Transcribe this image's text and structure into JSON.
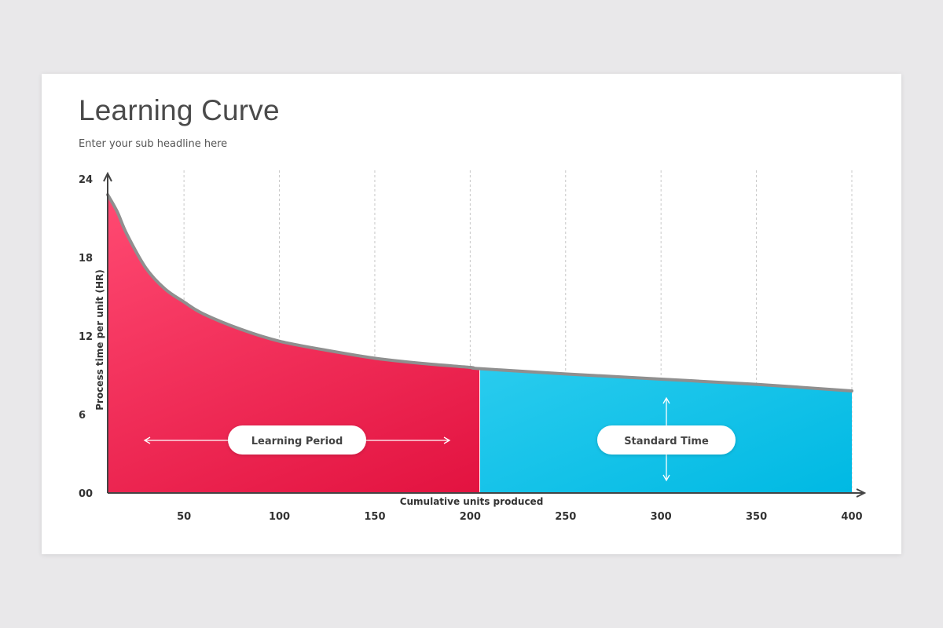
{
  "slide": {
    "title": "Learning Curve",
    "subtitle": "Enter your sub headline here"
  },
  "chart_data": {
    "type": "area",
    "title": "Learning Curve",
    "subtitle": "Enter your sub headline here",
    "xlabel": "Cumulative units produced",
    "ylabel": "Process time per unit (HR)",
    "xlim": [
      10,
      400
    ],
    "ylim": [
      0,
      24
    ],
    "x_ticks": [
      50,
      100,
      150,
      200,
      250,
      300,
      350,
      400
    ],
    "x_tick_labels": [
      "50",
      "100",
      "150",
      "200",
      "250",
      "300",
      "350",
      "400"
    ],
    "y_ticks": [
      0,
      6,
      12,
      18,
      24
    ],
    "y_tick_labels": [
      "00",
      "6",
      "12",
      "18",
      "24"
    ],
    "grid": "vertical dashed",
    "x": [
      10,
      15,
      20,
      30,
      40,
      50,
      60,
      80,
      100,
      125,
      150,
      175,
      200,
      205,
      250,
      300,
      350,
      400
    ],
    "y": [
      22.8,
      21.5,
      19.8,
      17.2,
      15.6,
      14.6,
      13.7,
      12.5,
      11.6,
      10.9,
      10.3,
      9.9,
      9.6,
      9.5,
      9.1,
      8.7,
      8.3,
      7.8
    ],
    "regions": [
      {
        "label": "Learning Period",
        "x_range": [
          10,
          205
        ],
        "color": "#e0083f"
      },
      {
        "label": "Standard Time",
        "x_range": [
          205,
          400
        ],
        "color": "#0bbde4"
      }
    ],
    "colors": {
      "learning": "#e0083f",
      "standard": "#0bbde4",
      "curve": "#8f8f8f",
      "axis": "#444444",
      "grid": "#c8c8c8"
    }
  }
}
